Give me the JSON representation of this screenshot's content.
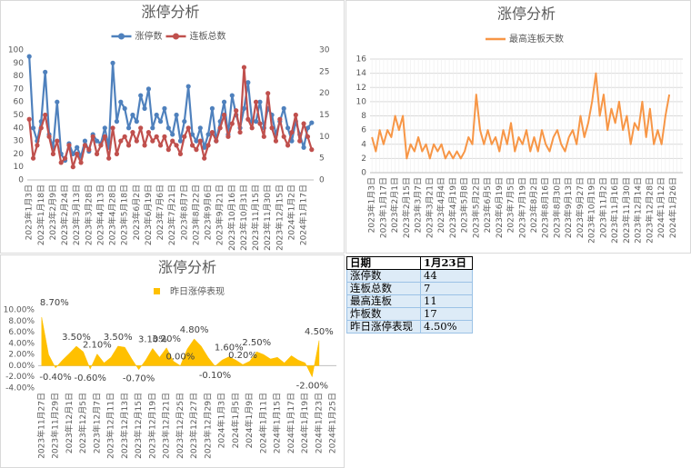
{
  "chart_data": [
    {
      "type": "line",
      "title": "涨停分析",
      "categories": [
        "2023年1月3日",
        null,
        null,
        "2023年1月18日",
        null,
        null,
        "2023年2月9日",
        null,
        null,
        "2023年2月24日",
        null,
        null,
        "2023年3月13日",
        null,
        null,
        "2023年3月28日",
        null,
        null,
        "2023年4月13日",
        null,
        null,
        "2023年4月28日",
        null,
        null,
        "2023年5月18日",
        null,
        null,
        "2023年6月2日",
        null,
        null,
        "2023年6月19日",
        null,
        null,
        "2023年7月6日",
        null,
        null,
        "2023年7月21日",
        null,
        null,
        "2023年8月7日",
        null,
        null,
        "2023年8月22日",
        null,
        null,
        "2023年9月6日",
        null,
        null,
        "2023年9月21日",
        null,
        null,
        "2023年10月16日",
        null,
        null,
        "2023年10月31日",
        null,
        null,
        "2023年11月15日",
        null,
        null,
        "2023年11月30日",
        null,
        null,
        "2023年12月15日",
        null,
        null,
        "2024年1月2日",
        null,
        null,
        "2024年1月17日",
        null,
        null
      ],
      "series": [
        {
          "name": "涨停数",
          "color": "#4f81bd",
          "values": [
            95,
            40,
            30,
            45,
            83,
            35,
            25,
            60,
            20,
            15,
            28,
            20,
            25,
            18,
            30,
            22,
            35,
            30,
            28,
            40,
            25,
            90,
            45,
            60,
            55,
            40,
            50,
            45,
            65,
            55,
            70,
            40,
            50,
            45,
            55,
            40,
            35,
            50,
            30,
            45,
            72,
            35,
            30,
            40,
            25,
            35,
            55,
            30,
            45,
            60,
            35,
            65,
            50,
            40,
            55,
            75,
            45,
            45,
            60,
            40,
            55,
            50,
            35,
            45,
            55,
            40,
            30,
            45,
            35,
            25,
            40,
            44
          ]
        },
        {
          "name": "连板总数",
          "color": "#c0504d",
          "axis": "y2",
          "values": [
            14,
            5,
            8,
            12,
            15,
            10,
            6,
            9,
            4,
            5,
            8,
            3,
            6,
            4,
            8,
            7,
            10,
            6,
            8,
            10,
            5,
            12,
            6,
            9,
            10,
            8,
            11,
            9,
            12,
            8,
            11,
            9,
            10,
            8,
            10,
            7,
            9,
            8,
            6,
            10,
            12,
            8,
            7,
            9,
            5,
            8,
            11,
            9,
            12,
            15,
            10,
            13,
            16,
            11,
            26,
            14,
            12,
            18,
            13,
            10,
            20,
            12,
            9,
            14,
            10,
            8,
            11,
            15,
            9,
            13,
            10,
            7
          ]
        }
      ],
      "ylim": [
        0,
        100
      ],
      "yticks": [
        0,
        10,
        20,
        30,
        40,
        50,
        60,
        70,
        80,
        90,
        100
      ],
      "y2lim": [
        0,
        30
      ],
      "y2ticks": [
        0,
        5,
        10,
        15,
        20,
        25,
        30
      ],
      "markers": true,
      "grid": false,
      "legend": "top"
    },
    {
      "type": "line",
      "title": "涨停分析",
      "categories": [
        "2023年1月3日",
        null,
        null,
        "2023年1月17日",
        null,
        null,
        "2023年2月1日",
        null,
        null,
        "2023年2月15日",
        null,
        null,
        "2023年3月7日",
        null,
        null,
        "2023年3月21日",
        null,
        null,
        "2023年4月4日",
        null,
        null,
        "2023年4月19日",
        null,
        null,
        "2023年5月8日",
        null,
        null,
        "2023年5月22日",
        null,
        null,
        "2023年6月5日",
        null,
        null,
        "2023年6月19日",
        null,
        null,
        "2023年7月5日",
        null,
        null,
        "2023年7月19日",
        null,
        null,
        "2023年8月2日",
        null,
        null,
        "2023年8月16日",
        null,
        null,
        "2023年8月30日",
        null,
        null,
        "2023年9月13日",
        null,
        null,
        "2023年9月27日",
        null,
        null,
        "2023年10月19日",
        null,
        null,
        "2023年11月2日",
        null,
        null,
        "2023年11月16日",
        null,
        null,
        "2023年11月30日",
        null,
        null,
        "2023年12月14日",
        null,
        null,
        "2023年12月28日",
        null,
        null,
        "2024年1月12日",
        null,
        null,
        "2024年1月26日",
        null,
        null
      ],
      "series": [
        {
          "name": "最高连板天数",
          "color": "#f79646",
          "values": [
            5,
            3,
            6,
            4,
            6,
            5,
            8,
            6,
            8,
            2,
            4,
            3,
            5,
            3,
            4,
            2,
            4,
            3,
            4,
            2,
            3,
            2,
            3,
            2,
            3,
            5,
            4,
            11,
            6,
            4,
            6,
            4,
            5,
            3,
            6,
            4,
            7,
            3,
            5,
            4,
            6,
            3,
            5,
            3,
            6,
            4,
            3,
            5,
            6,
            4,
            3,
            5,
            6,
            4,
            8,
            5,
            7,
            10,
            14,
            8,
            11,
            6,
            9,
            7,
            10,
            6,
            8,
            4,
            7,
            6,
            10,
            5,
            9,
            4,
            6,
            4,
            8,
            11,
            null,
            null,
            null
          ]
        }
      ],
      "ylim": [
        0,
        16
      ],
      "yticks": [
        0,
        2,
        4,
        6,
        8,
        10,
        12,
        14,
        16
      ],
      "markers": false,
      "grid": true,
      "legend": "top"
    },
    {
      "type": "area",
      "title": "涨停分析",
      "categories": [
        "2023年11月27日",
        null,
        "2023年11月29日",
        null,
        "2023年12月1日",
        null,
        "2023年12月5日",
        null,
        "2023年12月7日",
        null,
        "2023年12月11日",
        null,
        "2023年12月13日",
        null,
        "2023年12月15日",
        null,
        "2023年12月19日",
        null,
        "2023年12月21日",
        null,
        "2023年12月25日",
        null,
        "2023年12月27日",
        null,
        "2023年12月29日",
        null,
        "2024年1月3日",
        null,
        "2024年1月5日",
        null,
        "2024年1月9日",
        null,
        "2024年1月11日",
        null,
        "2024年1月15日",
        null,
        "2024年1月17日",
        null,
        "2024年1月19日",
        null,
        "2024年1月23日",
        null,
        "2024年1月25日"
      ],
      "series": [
        {
          "name": "昨日涨停表现",
          "color": "#ffc000",
          "values": [
            8.7,
            2.0,
            -0.4,
            1.0,
            2.2,
            3.5,
            2.5,
            -0.6,
            2.1,
            0.5,
            1.5,
            3.5,
            3.3,
            1.2,
            -0.7,
            1.0,
            3.1,
            1.5,
            3.2,
            0.8,
            0.0,
            3.0,
            4.8,
            3.5,
            1.5,
            -0.1,
            1.0,
            1.6,
            1.0,
            0.2,
            0.8,
            2.5,
            2.0,
            1.2,
            1.5,
            0.5,
            1.8,
            1.0,
            0.5,
            -2.0,
            4.5,
            null,
            null
          ],
          "value_labels": [
            "8.70%",
            null,
            "-0.40%",
            null,
            null,
            "3.50%",
            null,
            "-0.60%",
            "2.10%",
            null,
            null,
            "3.50%",
            null,
            null,
            "-0.70%",
            null,
            "3.10%",
            null,
            "3.20%",
            null,
            "0.00%",
            null,
            "4.80%",
            null,
            null,
            "-0.10%",
            null,
            "1.60%",
            null,
            "0.20%",
            null,
            "2.50%",
            null,
            null,
            null,
            null,
            null,
            null,
            null,
            "-2.00%",
            "4.50%",
            null,
            null
          ]
        }
      ],
      "ylim": [
        -4,
        10
      ],
      "yticks": [
        {
          "value": -4,
          "label": "-4.00%"
        },
        {
          "value": -2,
          "label": "-2.00%"
        },
        {
          "value": 0,
          "label": "0.00%"
        },
        {
          "value": 2,
          "label": "2.00%"
        },
        {
          "value": 4,
          "label": "4.00%"
        },
        {
          "value": 6,
          "label": "6.00%"
        },
        {
          "value": 8,
          "label": "8.00%"
        },
        {
          "value": 10,
          "label": "10.00%"
        }
      ],
      "markers": false,
      "grid": false,
      "legend": "top"
    }
  ],
  "table": {
    "header": [
      "日期",
      "1月23日"
    ],
    "rows": [
      [
        "涨停数",
        44
      ],
      [
        "连板总数",
        7
      ],
      [
        "最高连板",
        11
      ],
      [
        "炸板数",
        17
      ],
      [
        "昨日涨停表现",
        "4.50%"
      ]
    ]
  }
}
